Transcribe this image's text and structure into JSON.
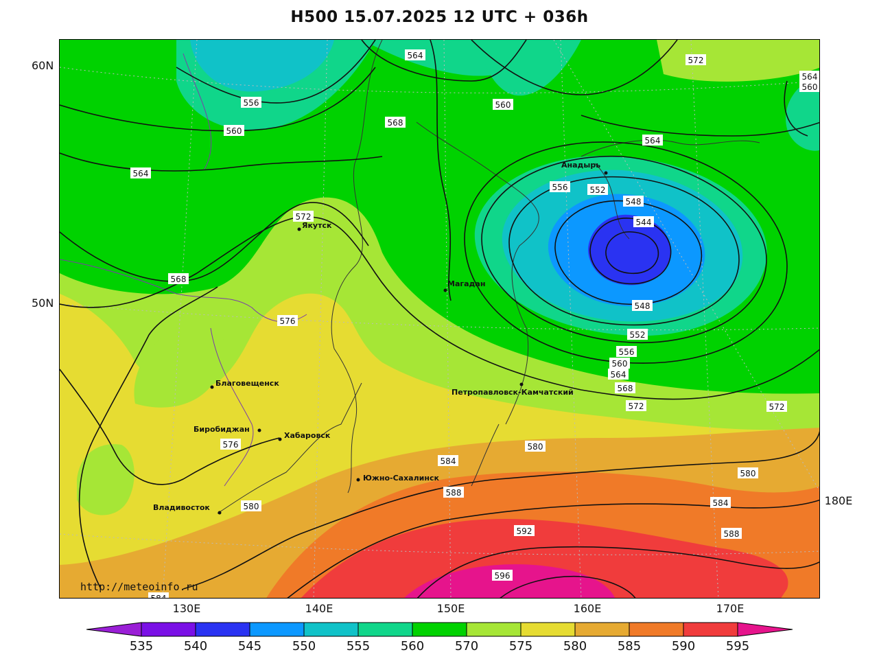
{
  "title": "H500  15.07.2025 12 UTC + 036h",
  "watermark": "http://meteoinfo.ru",
  "lat_labels": [
    "60N",
    "50N"
  ],
  "lon_labels": [
    "130E",
    "140E",
    "150E",
    "160E",
    "170E",
    "180E"
  ],
  "legend": {
    "levels": [
      "535",
      "540",
      "545",
      "550",
      "555",
      "560",
      "570",
      "575",
      "580",
      "585",
      "590",
      "595"
    ],
    "colors": [
      "#9a1fd6",
      "#7a10e6",
      "#2a33f2",
      "#0c98ff",
      "#10c2c8",
      "#10d68a",
      "#00d200",
      "#a6e636",
      "#e6dc32",
      "#e6aa32",
      "#f07a28",
      "#f03c3c",
      "#e6148c"
    ]
  },
  "contour_labels": [
    "556",
    "560",
    "564",
    "564",
    "568",
    "572",
    "576",
    "576",
    "580",
    "580",
    "580",
    "584",
    "588",
    "592",
    "596",
    "560",
    "568",
    "564",
    "572",
    "564",
    "560",
    "556",
    "552",
    "548",
    "544",
    "548",
    "552",
    "556",
    "560",
    "564",
    "568",
    "572",
    "572",
    "584",
    "588",
    "580",
    "584",
    "560"
  ],
  "cities": [
    "Якутск",
    "Магадан",
    "Анадырь",
    "Петропавловск-Камчатский",
    "Благовещенск",
    "Биробиджан",
    "Хабаровск",
    "Южно-Сахалинск",
    "Владивосток"
  ]
}
